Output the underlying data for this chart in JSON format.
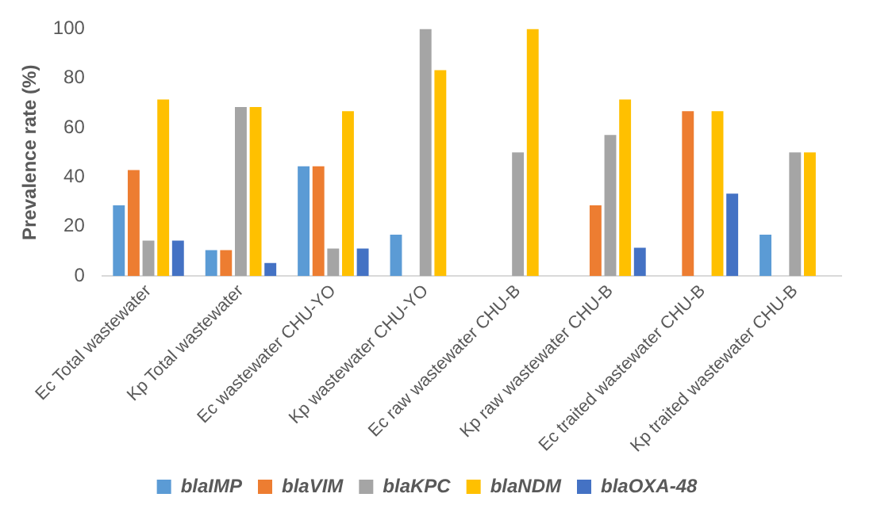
{
  "chart_data": {
    "type": "bar",
    "ylabel": "Prevalence rate (%)",
    "categories": [
      "Ec Total wastewater",
      "Kp Total wastewater",
      "Ec wastewater CHU-YO",
      "Kp wastewater CHU-YO",
      "Ec raw wastewater CHU-B",
      "Kp raw wastewater CHU-B",
      "Ec traited wastewater CHU-B",
      "Kp traited wastewater CHU-B"
    ],
    "series": [
      {
        "name": "blaIMP",
        "color": "#5b9bd5",
        "values": [
          28.6,
          10.5,
          44.4,
          16.7,
          0,
          0,
          0,
          16.7
        ]
      },
      {
        "name": "blaVIM",
        "color": "#ed7d31",
        "values": [
          42.9,
          10.5,
          44.4,
          0,
          0,
          28.6,
          66.7,
          0
        ]
      },
      {
        "name": "blaKPC",
        "color": "#a5a5a5",
        "values": [
          14.3,
          68.4,
          11.1,
          100,
          50,
          57.1,
          0,
          50
        ]
      },
      {
        "name": "blaNDM",
        "color": "#ffc000",
        "values": [
          71.4,
          68.4,
          66.7,
          83.3,
          100,
          71.4,
          66.7,
          50
        ]
      },
      {
        "name": "blaOXA-48",
        "color": "#4472c4",
        "values": [
          14.3,
          5.3,
          11.1,
          0,
          0,
          11.4,
          33.3,
          0
        ]
      }
    ],
    "ylim": [
      0,
      100
    ],
    "yticks": [
      0,
      20,
      40,
      60,
      80,
      100
    ],
    "grid": false,
    "legend": "bottom"
  }
}
